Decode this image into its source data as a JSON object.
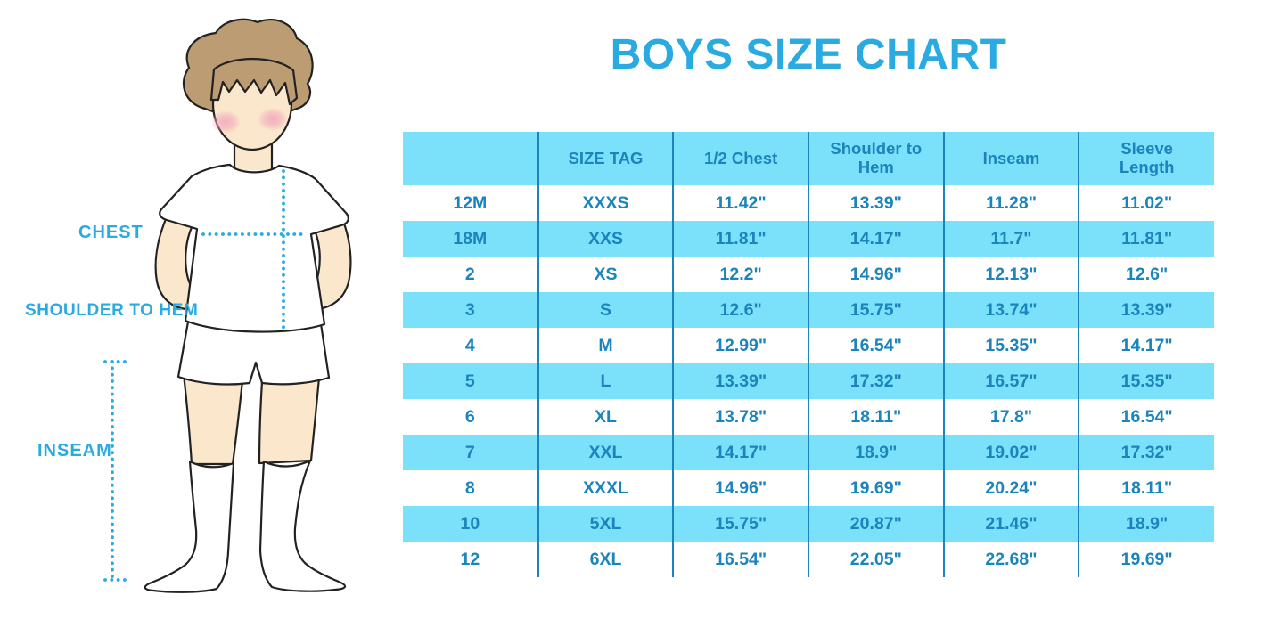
{
  "title": "BOYS SIZE CHART",
  "figure": {
    "chest_label": "CHEST",
    "shoulder_label": "SHOULDER TO HEM",
    "inseam_label": "INSEAM"
  },
  "colors": {
    "accent_blue": "#29ABE2",
    "table_row_cyan": "#7BE0FA",
    "table_text_blue": "#1B84BC",
    "table_line_blue": "#1B84BC",
    "hair_brown": "#BC9C72",
    "skin": "#FBE7CB",
    "blush_pink": "#F2A9BD",
    "outline": "#222222"
  },
  "chart_data": {
    "type": "table",
    "title": "BOYS SIZE CHART",
    "columns": [
      "",
      "SIZE TAG",
      "1/2 Chest",
      "Shoulder to Hem",
      "Inseam",
      "Sleeve Length"
    ],
    "rows": [
      [
        "12M",
        "XXXS",
        "11.42\"",
        "13.39\"",
        "11.28\"",
        "11.02\""
      ],
      [
        "18M",
        "XXS",
        "11.81\"",
        "14.17\"",
        "11.7\"",
        "11.81\""
      ],
      [
        "2",
        "XS",
        "12.2\"",
        "14.96\"",
        "12.13\"",
        "12.6\""
      ],
      [
        "3",
        "S",
        "12.6\"",
        "15.75\"",
        "13.74\"",
        "13.39\""
      ],
      [
        "4",
        "M",
        "12.99\"",
        "16.54\"",
        "15.35\"",
        "14.17\""
      ],
      [
        "5",
        "L",
        "13.39\"",
        "17.32\"",
        "16.57\"",
        "15.35\""
      ],
      [
        "6",
        "XL",
        "13.78\"",
        "18.11\"",
        "17.8\"",
        "16.54\""
      ],
      [
        "7",
        "XXL",
        "14.17\"",
        "18.9\"",
        "19.02\"",
        "17.32\""
      ],
      [
        "8",
        "XXXL",
        "14.96\"",
        "19.69\"",
        "20.24\"",
        "18.11\""
      ],
      [
        "10",
        "5XL",
        "15.75\"",
        "20.87\"",
        "21.46\"",
        "18.9\""
      ],
      [
        "12",
        "6XL",
        "16.54\"",
        "22.05\"",
        "22.68\"",
        "19.69\""
      ]
    ],
    "layout": {
      "header_fill": "#7BE0FA",
      "alternating_row_fill": "#7BE0FA on rows 18M, 3, 5, 7, 10; white otherwise",
      "column_dividers": "vertical only, #1B84BC",
      "legend_position": "none",
      "grid": "off"
    }
  }
}
